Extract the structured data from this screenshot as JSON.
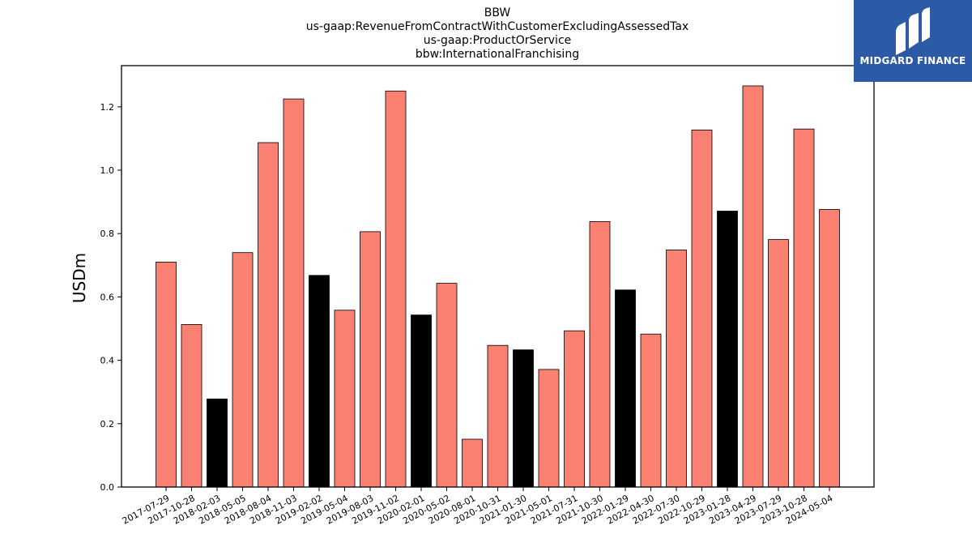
{
  "chart_data": {
    "type": "bar",
    "title_lines": [
      "BBW",
      "us-gaap:RevenueFromContractWithCustomerExcludingAssessedTax",
      "us-gaap:ProductOrService",
      "bbw:InternationalFranchising"
    ],
    "xlabel": "",
    "ylabel": "USDm",
    "ylim": [
      0,
      1.33
    ],
    "yticks": [
      0.0,
      0.2,
      0.4,
      0.6,
      0.8,
      1.0,
      1.2
    ],
    "ytick_labels": [
      "0.0",
      "0.2",
      "0.4",
      "0.6",
      "0.8",
      "1.0",
      "1.2"
    ],
    "categories": [
      "2017-07-29",
      "2017-10-28",
      "2018-02-03",
      "2018-05-05",
      "2018-08-04",
      "2018-11-03",
      "2019-02-02",
      "2019-05-04",
      "2019-08-03",
      "2019-11-02",
      "2020-02-01",
      "2020-05-02",
      "2020-08-01",
      "2020-10-31",
      "2021-01-30",
      "2021-05-01",
      "2021-07-31",
      "2021-10-30",
      "2022-01-29",
      "2022-04-30",
      "2022-07-30",
      "2022-10-29",
      "2023-01-28",
      "2023-04-29",
      "2023-07-29",
      "2023-10-28",
      "2024-05-04"
    ],
    "values": [
      0.71,
      0.513,
      0.278,
      0.74,
      1.087,
      1.225,
      0.668,
      0.558,
      0.806,
      1.25,
      0.543,
      0.643,
      0.151,
      0.447,
      0.433,
      0.371,
      0.493,
      0.838,
      0.622,
      0.483,
      0.748,
      1.127,
      0.871,
      1.266,
      0.781,
      1.13,
      0.876
    ],
    "highlight": [
      false,
      false,
      true,
      false,
      false,
      false,
      true,
      false,
      false,
      false,
      true,
      false,
      false,
      false,
      true,
      false,
      false,
      false,
      true,
      false,
      false,
      false,
      true,
      false,
      false,
      false,
      false
    ],
    "colors": {
      "normal": "#fa8072",
      "highlight": "#000000",
      "edge": "#000000"
    },
    "grid": false
  },
  "logo": {
    "text": "MIDGARD FINANCE",
    "background": "#2d5aa6"
  }
}
